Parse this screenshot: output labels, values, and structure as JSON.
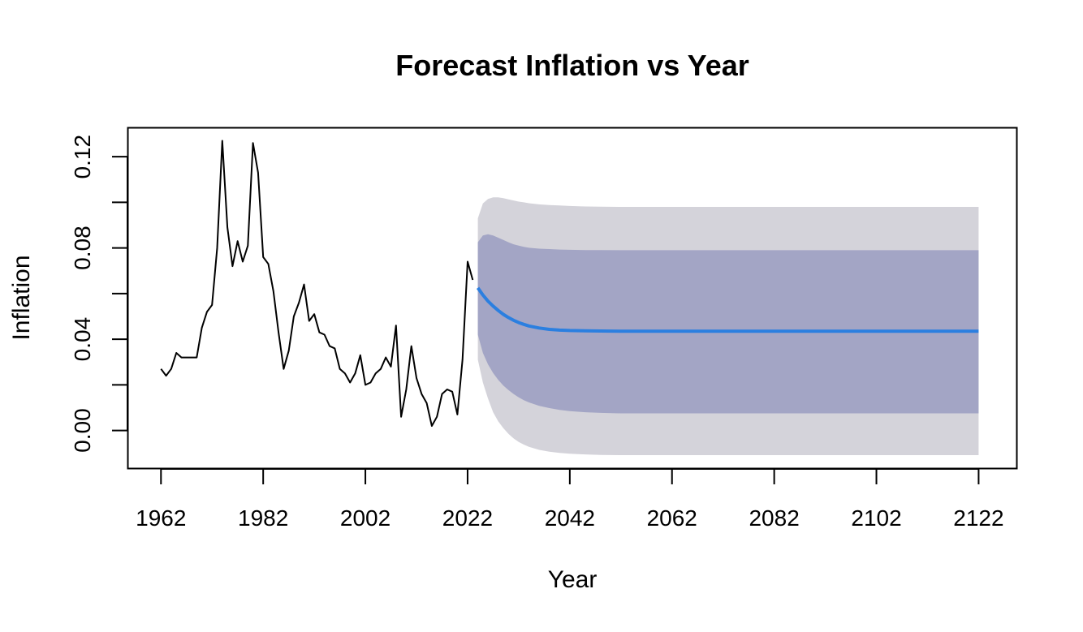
{
  "chart_data": {
    "type": "line",
    "title": "Forecast Inflation vs Year",
    "xlabel": "Year",
    "ylabel": "Inflation",
    "xlim": [
      1955.6,
      2129.4
    ],
    "ylim": [
      -0.0165,
      0.1325
    ],
    "x_ticks": [
      1962,
      1982,
      2002,
      2022,
      2042,
      2062,
      2082,
      2102,
      2122
    ],
    "y_ticks": [
      0.0,
      0.04,
      0.08,
      0.12
    ],
    "y_tick_labels": [
      "0.00",
      "0.04",
      "0.08",
      "0.12"
    ],
    "y_minor_ticks": [
      0.0,
      0.02,
      0.04,
      0.06,
      0.08,
      0.1,
      0.12
    ],
    "grid": false,
    "colors": {
      "history": "#000000",
      "forecast": "#2b7fe0",
      "band80": "#a3a5c5",
      "band95": "#d4d3da"
    },
    "series": [
      {
        "kind": "history",
        "x": [
          1962,
          1963,
          1964,
          1965,
          1966,
          1967,
          1968,
          1969,
          1970,
          1971,
          1972,
          1973,
          1974,
          1975,
          1976,
          1977,
          1978,
          1979,
          1980,
          1981,
          1982,
          1983,
          1984,
          1985,
          1986,
          1987,
          1988,
          1989,
          1990,
          1991,
          1992,
          1993,
          1994,
          1995,
          1996,
          1997,
          1998,
          1999,
          2000,
          2001,
          2002,
          2003,
          2004,
          2005,
          2006,
          2007,
          2008,
          2009,
          2010,
          2011,
          2012,
          2013,
          2014,
          2015,
          2016,
          2017,
          2018,
          2019,
          2020,
          2021,
          2022,
          2023
        ],
        "y": [
          0.027,
          0.024,
          0.027,
          0.034,
          0.032,
          0.032,
          0.032,
          0.032,
          0.045,
          0.052,
          0.055,
          0.08,
          0.127,
          0.089,
          0.072,
          0.083,
          0.074,
          0.081,
          0.126,
          0.113,
          0.076,
          0.073,
          0.061,
          0.043,
          0.027,
          0.035,
          0.05,
          0.056,
          0.064,
          0.048,
          0.051,
          0.043,
          0.042,
          0.037,
          0.036,
          0.027,
          0.025,
          0.021,
          0.025,
          0.033,
          0.02,
          0.021,
          0.025,
          0.027,
          0.032,
          0.028,
          0.046,
          0.006,
          0.018,
          0.037,
          0.023,
          0.016,
          0.012,
          0.002,
          0.006,
          0.016,
          0.018,
          0.017,
          0.007,
          0.031,
          0.074,
          0.066
        ]
      },
      {
        "kind": "forecast",
        "x": [
          2024,
          2025,
          2026,
          2027,
          2028,
          2029,
          2030,
          2031,
          2032,
          2033,
          2034,
          2036,
          2038,
          2040,
          2042,
          2045,
          2048,
          2052,
          2056,
          2062,
          2070,
          2080,
          2090,
          2100,
          2110,
          2122
        ],
        "y": [
          0.0625,
          0.0594,
          0.0567,
          0.0545,
          0.0526,
          0.0509,
          0.0495,
          0.0483,
          0.0473,
          0.0465,
          0.0458,
          0.0449,
          0.0443,
          0.044,
          0.0438,
          0.0437,
          0.0436,
          0.0435,
          0.0435,
          0.0435,
          0.0435,
          0.0435,
          0.0435,
          0.0435,
          0.0435,
          0.0435
        ],
        "lo80": [
          0.042,
          0.034,
          0.029,
          0.0252,
          0.0222,
          0.0197,
          0.0177,
          0.016,
          0.0145,
          0.0133,
          0.0123,
          0.0108,
          0.0098,
          0.009,
          0.0085,
          0.008,
          0.0077,
          0.0075,
          0.0075,
          0.0075,
          0.0075,
          0.0075,
          0.0075,
          0.0075,
          0.0075,
          0.0075
        ],
        "hi80": [
          0.0825,
          0.0855,
          0.086,
          0.0855,
          0.0845,
          0.0835,
          0.0825,
          0.0816,
          0.081,
          0.0805,
          0.0801,
          0.0797,
          0.0795,
          0.0793,
          0.0792,
          0.0791,
          0.0791,
          0.079,
          0.079,
          0.079,
          0.079,
          0.079,
          0.079,
          0.079,
          0.079,
          0.079
        ],
        "lo95": [
          0.031,
          0.021,
          0.014,
          0.008,
          0.004,
          0.001,
          -0.0015,
          -0.0035,
          -0.005,
          -0.0062,
          -0.0072,
          -0.0085,
          -0.0093,
          -0.0098,
          -0.0102,
          -0.0105,
          -0.0107,
          -0.0108,
          -0.0108,
          -0.0108,
          -0.0108,
          -0.0108,
          -0.0108,
          -0.0108,
          -0.0108,
          -0.0108
        ],
        "hi95": [
          0.093,
          0.0995,
          0.1015,
          0.1022,
          0.1022,
          0.1018,
          0.1013,
          0.1008,
          0.1003,
          0.1,
          0.0996,
          0.0991,
          0.0988,
          0.0986,
          0.0984,
          0.0982,
          0.0981,
          0.098,
          0.098,
          0.098,
          0.098,
          0.098,
          0.098,
          0.098,
          0.098,
          0.098
        ]
      }
    ]
  }
}
